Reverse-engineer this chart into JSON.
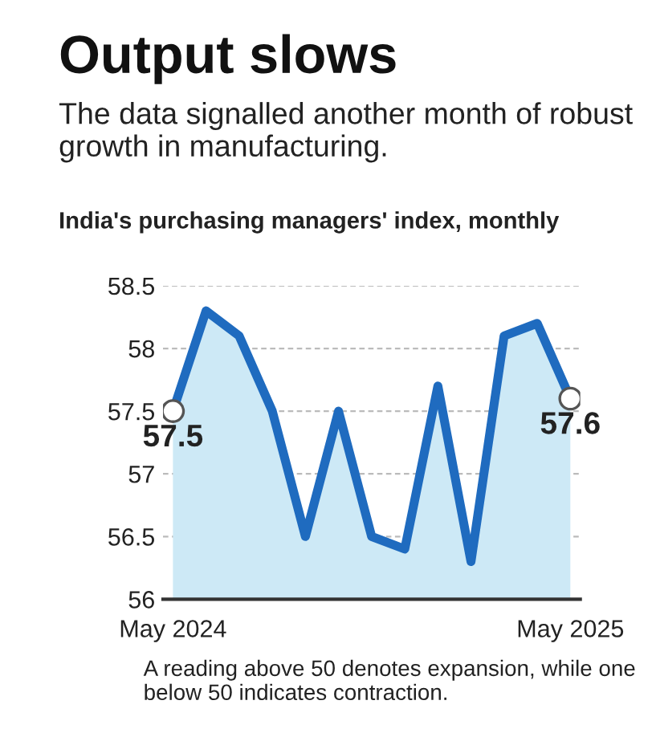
{
  "chart_data": {
    "type": "area",
    "title": "Output slows",
    "subtitle": "The data signalled another month of robust growth in manufacturing.",
    "ylabel": "India's purchasing managers' index, monthly",
    "categories": [
      "May 2024",
      null,
      null,
      null,
      null,
      null,
      null,
      null,
      null,
      null,
      null,
      null,
      "May 2025"
    ],
    "series": [
      {
        "color": "#1f6bbf",
        "values": [
          57.5,
          58.3,
          58.1,
          57.5,
          56.5,
          57.5,
          56.5,
          56.4,
          57.7,
          56.3,
          58.1,
          58.2,
          57.6
        ]
      },
      {
        "type": "scatter",
        "color": "#ffffff",
        "x": [
          "May 2024",
          "May 2025"
        ],
        "values": [
          57.5,
          57.6
        ],
        "value_labels": [
          "57.5",
          "57.6"
        ]
      }
    ],
    "ylim": [
      56,
      58.5
    ],
    "yticks": [
      56,
      56.5,
      57,
      57.5,
      58,
      58.5
    ],
    "grid": "y",
    "annotations": [
      "A reading above 50 denotes expansion, while one below 50 indicates contraction."
    ]
  }
}
